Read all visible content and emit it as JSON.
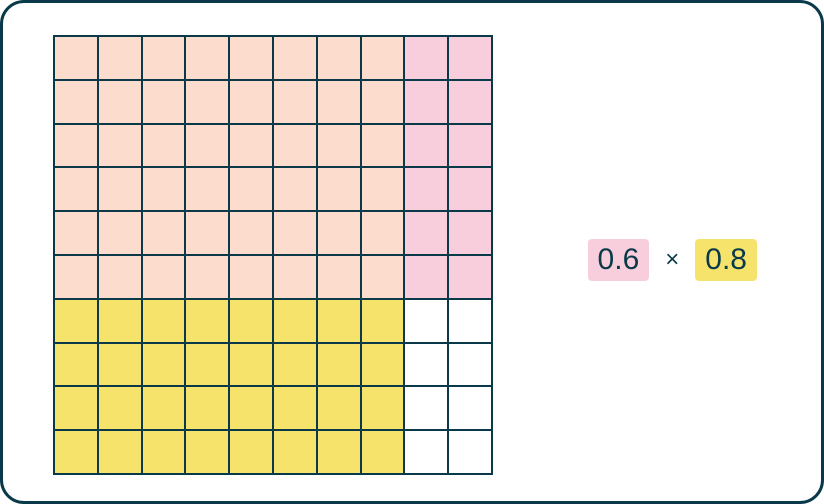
{
  "grid": {
    "rows": 10,
    "cols": 10,
    "cell_size": 44,
    "border_color": "#0a3a4a",
    "regions": {
      "overlap": {
        "color": "#fcdccd",
        "row_range": [
          0,
          6
        ],
        "col_range": [
          0,
          8
        ]
      },
      "pink_only": {
        "color": "#f8cddc",
        "row_range": [
          0,
          6
        ],
        "col_range": [
          8,
          10
        ]
      },
      "yellow_only": {
        "color": "#f6e36c",
        "row_range": [
          6,
          10
        ],
        "col_range": [
          0,
          8
        ]
      },
      "empty": {
        "color": "#ffffff",
        "row_range": [
          6,
          10
        ],
        "col_range": [
          8,
          10
        ]
      }
    }
  },
  "expression": {
    "factor1": {
      "text": "0.6",
      "bg": "#f8cddc",
      "color": "#0a3a4a"
    },
    "operator": {
      "text": "×",
      "color": "#0a3a4a"
    },
    "factor2": {
      "text": "0.8",
      "bg": "#f6e36c",
      "color": "#0a3a4a"
    }
  },
  "container": {
    "border_color": "#0a3a4a",
    "background": "#ffffff"
  }
}
